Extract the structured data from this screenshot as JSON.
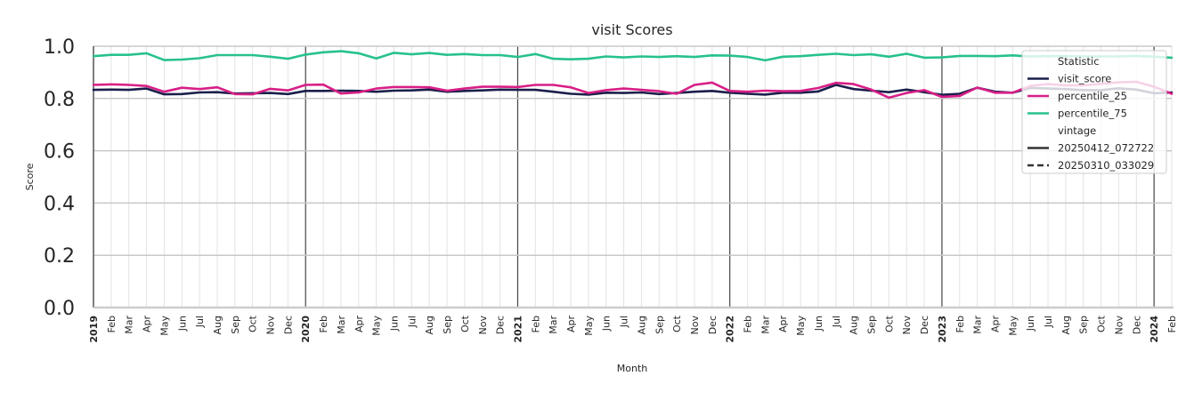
{
  "chart_data": {
    "type": "line",
    "title": "visit Scores",
    "xlabel": "Month",
    "ylabel": "Score",
    "ylim": [
      0.0,
      1.0
    ],
    "yticks": [
      "0.0",
      "0.2",
      "0.4",
      "0.6",
      "0.8",
      "1.0"
    ],
    "grid": true,
    "legend_position": "upper right",
    "x": [
      "2019",
      "Feb",
      "Mar",
      "Apr",
      "May",
      "Jun",
      "Jul",
      "Aug",
      "Sep",
      "Oct",
      "Nov",
      "Dec",
      "2020",
      "Feb",
      "Mar",
      "Apr",
      "May",
      "Jun",
      "Jul",
      "Aug",
      "Sep",
      "Oct",
      "Nov",
      "Dec",
      "2021",
      "Feb",
      "Mar",
      "Apr",
      "May",
      "Jun",
      "Jul",
      "Aug",
      "Sep",
      "Oct",
      "Nov",
      "Dec",
      "2022",
      "Feb",
      "Mar",
      "Apr",
      "May",
      "Jun",
      "Jul",
      "Aug",
      "Sep",
      "Oct",
      "Nov",
      "Dec",
      "2023",
      "Feb",
      "Mar",
      "Apr",
      "May",
      "Jun",
      "Jul",
      "Aug",
      "Sep",
      "Oct",
      "Nov",
      "Dec",
      "2024",
      "Feb"
    ],
    "series": [
      {
        "name": "visit_score",
        "vintage": "20250412_072722",
        "color": "#1b1f4b",
        "values": [
          0.833,
          0.834,
          0.833,
          0.838,
          0.816,
          0.817,
          0.823,
          0.824,
          0.819,
          0.82,
          0.821,
          0.817,
          0.829,
          0.829,
          0.83,
          0.829,
          0.826,
          0.83,
          0.831,
          0.834,
          0.826,
          0.829,
          0.831,
          0.834,
          0.833,
          0.833,
          0.826,
          0.818,
          0.815,
          0.822,
          0.821,
          0.823,
          0.817,
          0.821,
          0.826,
          0.829,
          0.822,
          0.818,
          0.815,
          0.822,
          0.822,
          0.827,
          0.852,
          0.836,
          0.83,
          0.824,
          0.834,
          0.824,
          0.814,
          0.818,
          0.841,
          0.826,
          0.822,
          0.84,
          0.838,
          0.836,
          0.832,
          0.832,
          0.839,
          0.834,
          0.82,
          0.823
        ]
      },
      {
        "name": "percentile_25",
        "vintage": "20250412_072722",
        "color": "#d81f87",
        "values": [
          0.852,
          0.854,
          0.852,
          0.848,
          0.826,
          0.841,
          0.836,
          0.843,
          0.817,
          0.816,
          0.837,
          0.831,
          0.852,
          0.853,
          0.819,
          0.823,
          0.838,
          0.844,
          0.844,
          0.843,
          0.83,
          0.838,
          0.845,
          0.845,
          0.844,
          0.852,
          0.852,
          0.843,
          0.821,
          0.832,
          0.838,
          0.833,
          0.828,
          0.818,
          0.852,
          0.861,
          0.829,
          0.826,
          0.83,
          0.828,
          0.829,
          0.84,
          0.86,
          0.855,
          0.834,
          0.803,
          0.821,
          0.832,
          0.806,
          0.81,
          0.842,
          0.822,
          0.822,
          0.848,
          0.855,
          0.85,
          0.85,
          0.856,
          0.862,
          0.864,
          0.845,
          0.818
        ]
      },
      {
        "name": "percentile_75",
        "vintage": "20250412_072722",
        "color": "#27c190",
        "values": [
          0.962,
          0.967,
          0.967,
          0.973,
          0.947,
          0.949,
          0.954,
          0.966,
          0.966,
          0.966,
          0.96,
          0.952,
          0.968,
          0.977,
          0.981,
          0.973,
          0.953,
          0.975,
          0.969,
          0.974,
          0.967,
          0.97,
          0.966,
          0.966,
          0.959,
          0.97,
          0.952,
          0.95,
          0.952,
          0.961,
          0.957,
          0.961,
          0.959,
          0.962,
          0.959,
          0.965,
          0.964,
          0.959,
          0.946,
          0.96,
          0.962,
          0.967,
          0.971,
          0.966,
          0.969,
          0.96,
          0.971,
          0.956,
          0.957,
          0.963,
          0.963,
          0.962,
          0.965,
          0.961,
          0.962,
          0.962,
          0.961,
          0.961,
          0.961,
          0.963,
          0.96,
          0.956
        ]
      }
    ],
    "legend": {
      "groups": [
        {
          "title": "Statistic",
          "entries": [
            {
              "label": "visit_score",
              "color": "#1b1f4b",
              "style": "solid"
            },
            {
              "label": "percentile_25",
              "color": "#d81f87",
              "style": "solid"
            },
            {
              "label": "percentile_75",
              "color": "#27c190",
              "style": "solid"
            }
          ]
        },
        {
          "title": "vintage",
          "entries": [
            {
              "label": "20250412_072722",
              "color": "#333333",
              "style": "solid"
            },
            {
              "label": "20250310_033029",
              "color": "#333333",
              "style": "dashed"
            }
          ]
        }
      ]
    }
  }
}
